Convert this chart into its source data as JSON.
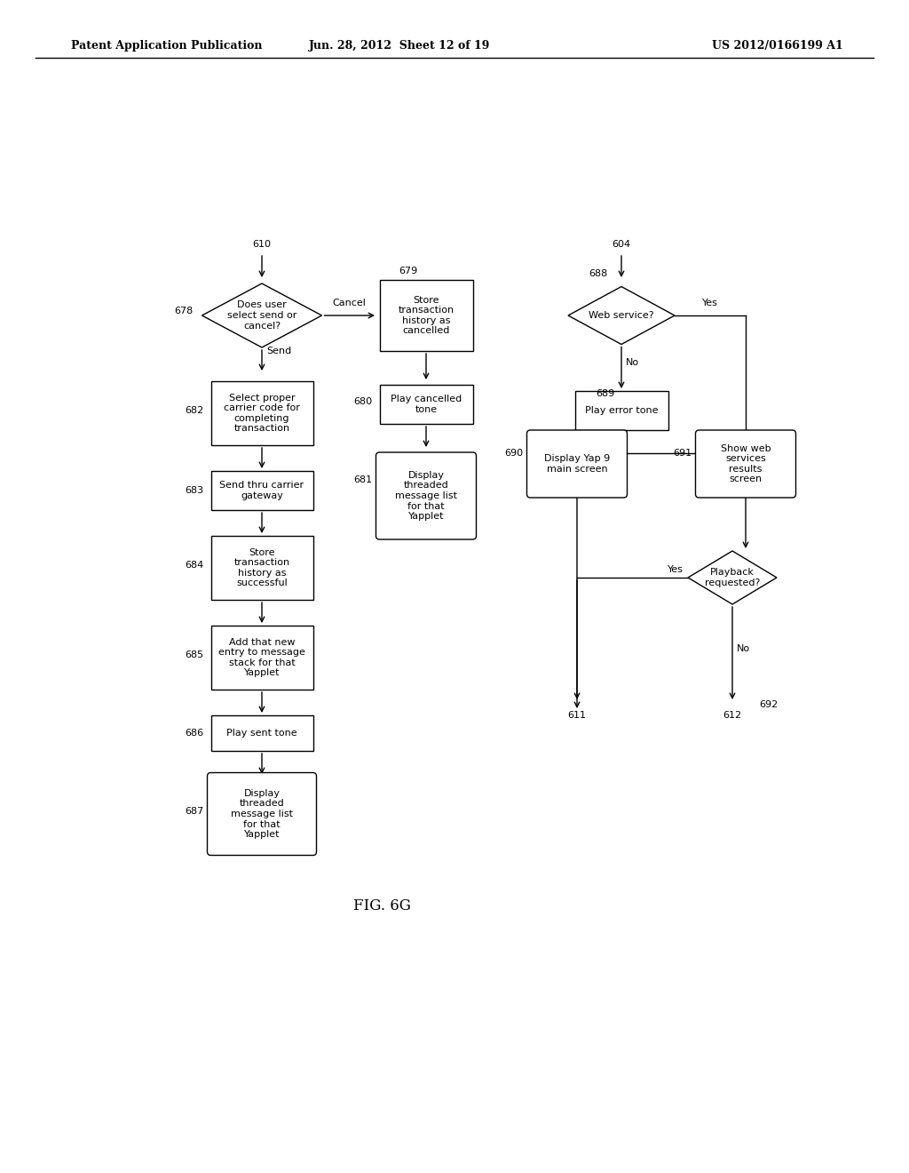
{
  "bg_color": "#ffffff",
  "header_left": "Patent Application Publication",
  "header_mid": "Jun. 28, 2012  Sheet 12 of 19",
  "header_right": "US 2012/0166199 A1",
  "figure_label": "FIG. 6G"
}
